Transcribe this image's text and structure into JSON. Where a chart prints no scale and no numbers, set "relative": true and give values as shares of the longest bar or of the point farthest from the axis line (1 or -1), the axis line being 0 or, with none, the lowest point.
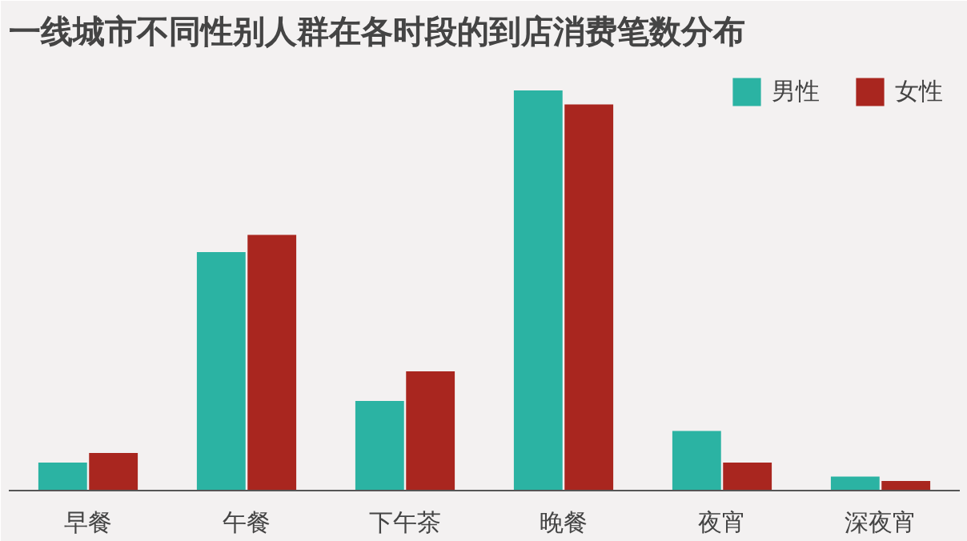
{
  "chart_data": {
    "type": "bar",
    "title": "一线城市不同性别人群在各时段的到店消费笔数分布",
    "relative": true,
    "categories": [
      "早餐",
      "午餐",
      "下午茶",
      "晚餐",
      "夜宵",
      "深夜宵"
    ],
    "series": [
      {
        "name": "男性",
        "color": "#2bb3a3",
        "values": [
          0.07,
          0.596,
          0.224,
          1,
          0.149,
          0.035
        ]
      },
      {
        "name": "女性",
        "color": "#a9261f",
        "values": [
          0.094,
          0.639,
          0.298,
          0.965,
          0.07,
          0.024
        ]
      }
    ],
    "legend": "top right",
    "grid": false
  }
}
